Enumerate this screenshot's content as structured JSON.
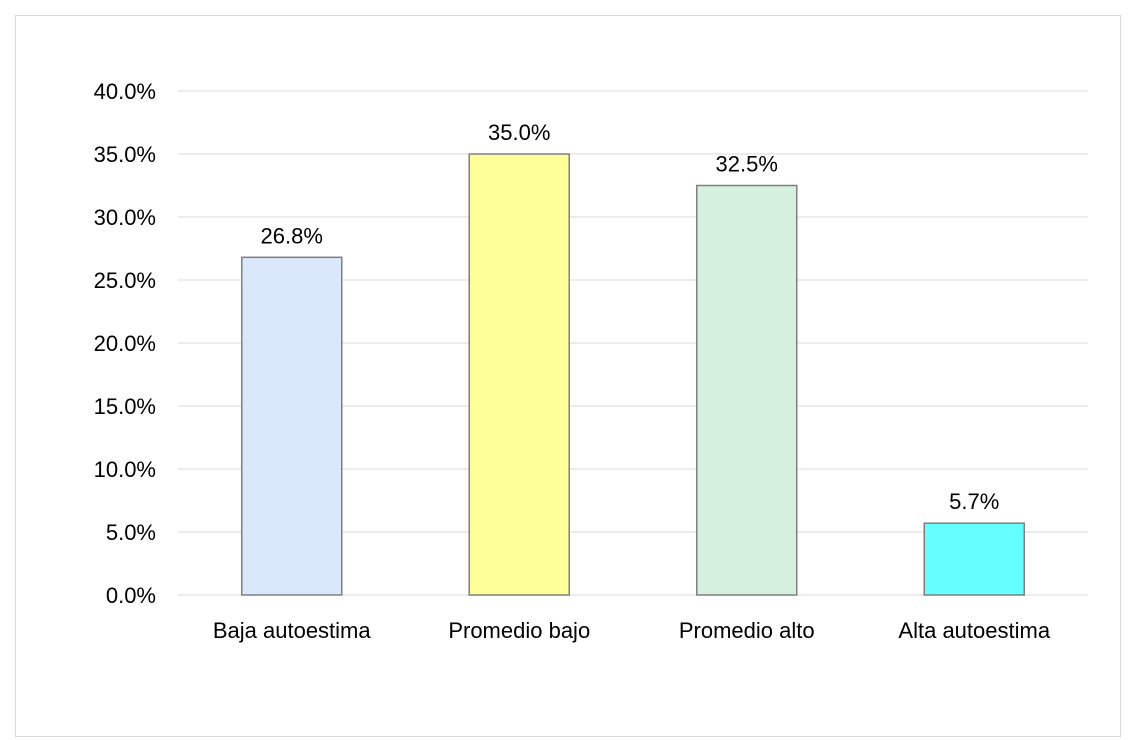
{
  "chart_data": {
    "type": "bar",
    "title": "",
    "xlabel": "",
    "ylabel": "",
    "categories": [
      "Baja autoestima",
      "Promedio bajo",
      "Promedio alto",
      "Alta autoestima"
    ],
    "values": [
      26.8,
      35.0,
      32.5,
      5.7
    ],
    "data_labels": [
      "26.8%",
      "35.0%",
      "32.5%",
      "5.7%"
    ],
    "bar_colors": [
      "#dae8fc",
      "#ffff99",
      "#d5f0dd",
      "#66ffff"
    ],
    "bar_border_color": "#7f7f7f",
    "ylim": [
      0,
      40
    ],
    "yticks": [
      0,
      5,
      10,
      15,
      20,
      25,
      30,
      35,
      40
    ],
    "ytick_labels": [
      "0.0%",
      "5.0%",
      "10.0%",
      "15.0%",
      "20.0%",
      "25.0%",
      "30.0%",
      "35.0%",
      "40.0%"
    ],
    "grid": true,
    "grid_color": "#d9d9d9",
    "legend": "none"
  }
}
